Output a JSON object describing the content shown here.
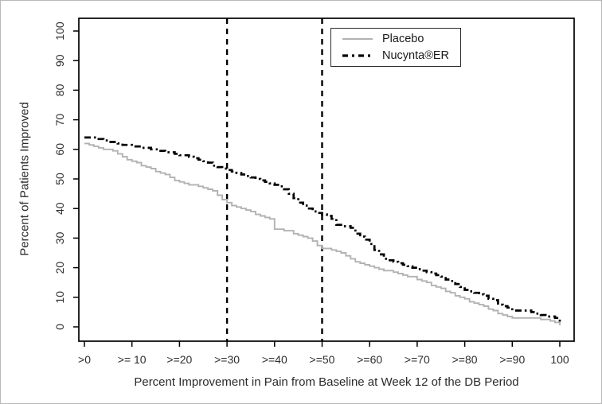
{
  "figure": {
    "background": "#ffffff",
    "frame_color": "#b8b8b8"
  },
  "chart_data": {
    "type": "line",
    "subtype": "step",
    "title": "",
    "xlabel": "Percent Improvement in Pain from Baseline at Week 12 of the DB Period",
    "ylabel": "Percent of Patients Improved",
    "grid": false,
    "xlim": [
      -1.2,
      103
    ],
    "ylim": [
      -4.8,
      104.5
    ],
    "x_tick_values": [
      0,
      10,
      20,
      30,
      40,
      50,
      60,
      70,
      80,
      90,
      100
    ],
    "x_tick_labels": [
      ">0",
      ">= 10",
      ">=20",
      ">=30",
      ">=40",
      ">=50",
      ">=60",
      ">=70",
      ">=80",
      ">=90",
      "100"
    ],
    "y_tick_values": [
      0,
      10,
      20,
      30,
      40,
      50,
      60,
      70,
      80,
      90,
      100
    ],
    "y_tick_labels": [
      "0",
      "10",
      "20",
      "30",
      "40",
      "50",
      "60",
      "70",
      "80",
      "90",
      "100"
    ],
    "axis_color": "#000000",
    "reference_lines": {
      "x_values": [
        30,
        50
      ],
      "style": "dashed",
      "color": "#000000",
      "width": 2.4
    },
    "legend": {
      "position": "top-right",
      "border": true
    },
    "series": [
      {
        "name": "Placebo",
        "color": "#b2b2b2",
        "line_style": "solid",
        "line_width": 1.9,
        "points": [
          [
            0,
            62
          ],
          [
            1,
            61.5
          ],
          [
            2,
            61
          ],
          [
            3,
            60.5
          ],
          [
            4,
            60
          ],
          [
            6,
            59.5
          ],
          [
            7,
            58.5
          ],
          [
            8,
            57.5
          ],
          [
            9,
            56.5
          ],
          [
            10,
            56
          ],
          [
            11,
            55.5
          ],
          [
            12,
            54.5
          ],
          [
            13,
            54
          ],
          [
            14,
            53.5
          ],
          [
            15,
            52.5
          ],
          [
            16,
            52
          ],
          [
            17,
            51.5
          ],
          [
            18,
            50.5
          ],
          [
            19,
            49.5
          ],
          [
            20,
            49
          ],
          [
            21,
            48.5
          ],
          [
            22,
            48
          ],
          [
            24,
            47.5
          ],
          [
            25,
            47
          ],
          [
            26,
            46.5
          ],
          [
            27,
            46
          ],
          [
            28,
            44.5
          ],
          [
            29,
            43
          ],
          [
            30,
            42
          ],
          [
            31,
            41
          ],
          [
            32,
            40.5
          ],
          [
            33,
            40
          ],
          [
            34,
            39.5
          ],
          [
            35,
            39
          ],
          [
            36,
            38
          ],
          [
            37,
            37.5
          ],
          [
            38,
            37
          ],
          [
            39,
            36.5
          ],
          [
            40,
            33
          ],
          [
            42,
            32.5
          ],
          [
            44,
            31.5
          ],
          [
            45,
            31
          ],
          [
            46,
            30.5
          ],
          [
            47,
            30
          ],
          [
            48,
            29
          ],
          [
            49,
            27.5
          ],
          [
            50,
            26.5
          ],
          [
            52,
            26
          ],
          [
            53,
            25.5
          ],
          [
            54,
            25
          ],
          [
            55,
            24
          ],
          [
            56,
            23
          ],
          [
            57,
            22
          ],
          [
            58,
            21.5
          ],
          [
            59,
            21
          ],
          [
            60,
            20.5
          ],
          [
            61,
            20
          ],
          [
            62,
            19.5
          ],
          [
            63,
            19
          ],
          [
            65,
            18.5
          ],
          [
            66,
            18
          ],
          [
            67,
            17.5
          ],
          [
            68,
            17
          ],
          [
            70,
            16
          ],
          [
            71,
            15.5
          ],
          [
            72,
            15
          ],
          [
            73,
            14
          ],
          [
            74,
            13.5
          ],
          [
            75,
            13
          ],
          [
            76,
            12
          ],
          [
            77,
            11.5
          ],
          [
            78,
            10.5
          ],
          [
            79,
            10
          ],
          [
            80,
            9.5
          ],
          [
            81,
            8.5
          ],
          [
            82,
            8
          ],
          [
            83,
            7.5
          ],
          [
            84,
            7
          ],
          [
            85,
            6
          ],
          [
            86,
            5.5
          ],
          [
            87,
            4.5
          ],
          [
            88,
            4
          ],
          [
            89,
            3.5
          ],
          [
            90,
            3
          ],
          [
            96,
            2.5
          ],
          [
            98,
            2
          ],
          [
            99,
            1.5
          ],
          [
            100,
            0.5
          ]
        ]
      },
      {
        "name": "Nucynta®ER",
        "color": "#000000",
        "line_style": "dash-dot",
        "line_width": 2.7,
        "points": [
          [
            0,
            64
          ],
          [
            2,
            64
          ],
          [
            3,
            63.5
          ],
          [
            4,
            63
          ],
          [
            5,
            62.5
          ],
          [
            7,
            62
          ],
          [
            8,
            61.5
          ],
          [
            10,
            61
          ],
          [
            12,
            60.5
          ],
          [
            14,
            60
          ],
          [
            16,
            59.5
          ],
          [
            17,
            59
          ],
          [
            19,
            58.5
          ],
          [
            20,
            58
          ],
          [
            22,
            57.5
          ],
          [
            23,
            57
          ],
          [
            24,
            56.5
          ],
          [
            25,
            56
          ],
          [
            26,
            55.5
          ],
          [
            27,
            54.5
          ],
          [
            28,
            54
          ],
          [
            29,
            53.5
          ],
          [
            30,
            53
          ],
          [
            31,
            52.5
          ],
          [
            32,
            52
          ],
          [
            33,
            51.5
          ],
          [
            34,
            51
          ],
          [
            35,
            50.5
          ],
          [
            36,
            50
          ],
          [
            37,
            49.5
          ],
          [
            38,
            49
          ],
          [
            39,
            48.5
          ],
          [
            40,
            48
          ],
          [
            41,
            47.5
          ],
          [
            42,
            46.5
          ],
          [
            43,
            45
          ],
          [
            44,
            43.5
          ],
          [
            45,
            42
          ],
          [
            46,
            41
          ],
          [
            47,
            40
          ],
          [
            48,
            39
          ],
          [
            49,
            38.5
          ],
          [
            50,
            38
          ],
          [
            51,
            37.5
          ],
          [
            52,
            36.5
          ],
          [
            53,
            34.5
          ],
          [
            54,
            34
          ],
          [
            56,
            33.5
          ],
          [
            57,
            31.5
          ],
          [
            58,
            30.5
          ],
          [
            59,
            29.5
          ],
          [
            60,
            28
          ],
          [
            61,
            26
          ],
          [
            62,
            24.5
          ],
          [
            63,
            23
          ],
          [
            64,
            22.5
          ],
          [
            65,
            22
          ],
          [
            66,
            21.5
          ],
          [
            67,
            21
          ],
          [
            68,
            20.5
          ],
          [
            69,
            20
          ],
          [
            70,
            19.5
          ],
          [
            71,
            19
          ],
          [
            72,
            18.5
          ],
          [
            73,
            18
          ],
          [
            74,
            17.5
          ],
          [
            75,
            17
          ],
          [
            76,
            16
          ],
          [
            77,
            15.5
          ],
          [
            78,
            14.5
          ],
          [
            79,
            13.5
          ],
          [
            80,
            12.5
          ],
          [
            81,
            12
          ],
          [
            82,
            11.5
          ],
          [
            83,
            11
          ],
          [
            84,
            10.5
          ],
          [
            85,
            9.5
          ],
          [
            86,
            9
          ],
          [
            87,
            7.5
          ],
          [
            88,
            7
          ],
          [
            89,
            6.5
          ],
          [
            90,
            5.5
          ],
          [
            94,
            5
          ],
          [
            95,
            4.5
          ],
          [
            96,
            4
          ],
          [
            97,
            3.5
          ],
          [
            99,
            3
          ],
          [
            100,
            1
          ]
        ]
      }
    ]
  }
}
